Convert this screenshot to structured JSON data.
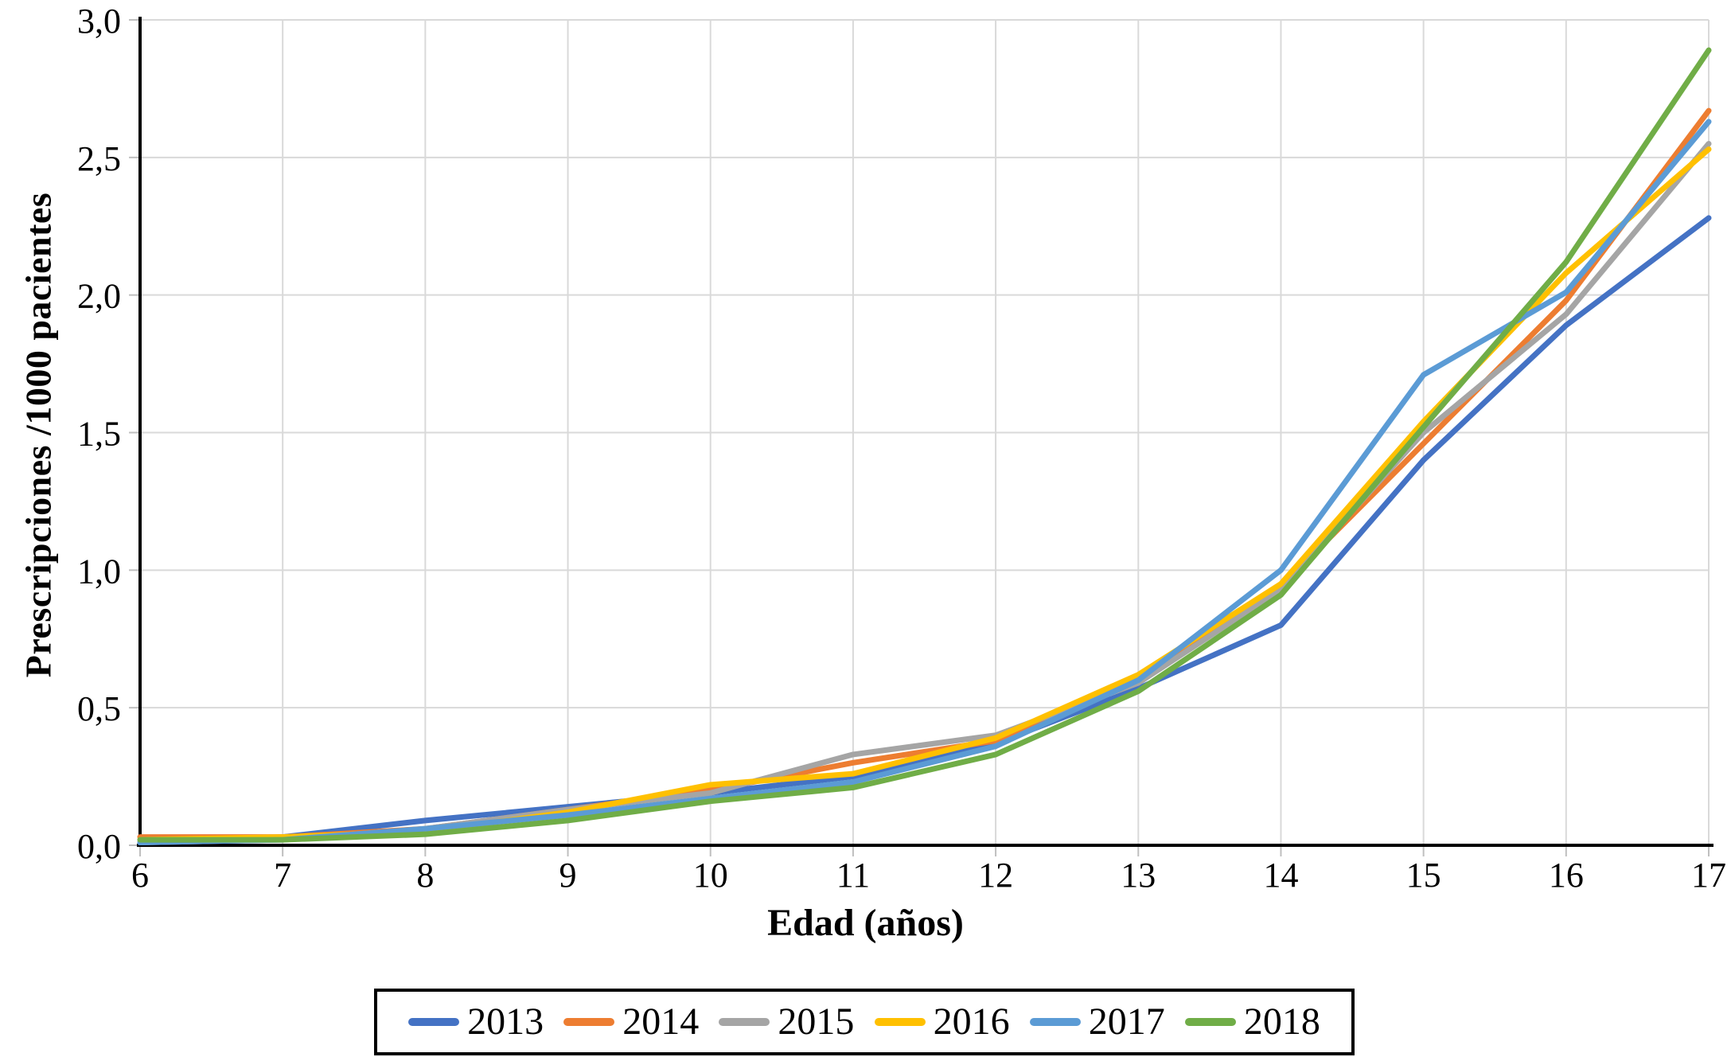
{
  "chart_data": {
    "type": "line",
    "title": "",
    "xlabel": "Edad (años)",
    "ylabel": "Prescripciones /1000 pacientes",
    "x": [
      6,
      7,
      8,
      9,
      10,
      11,
      12,
      13,
      14,
      15,
      16,
      17
    ],
    "x_tick_labels": [
      "6",
      "7",
      "8",
      "9",
      "10",
      "11",
      "12",
      "13",
      "14",
      "15",
      "16",
      "17"
    ],
    "y_ticks": [
      0.0,
      0.5,
      1.0,
      1.5,
      2.0,
      2.5,
      3.0
    ],
    "y_tick_labels": [
      "0,0",
      "0,5",
      "1,0",
      "1,5",
      "2,0",
      "2,5",
      "3,0"
    ],
    "xlim": [
      6,
      17
    ],
    "ylim": [
      0,
      3
    ],
    "grid": true,
    "legend_position": "bottom",
    "series": [
      {
        "name": "2013",
        "color": "#4472C4",
        "values": [
          0.01,
          0.03,
          0.09,
          0.14,
          0.19,
          0.25,
          0.37,
          0.57,
          0.8,
          1.4,
          1.89,
          2.28
        ]
      },
      {
        "name": "2014",
        "color": "#ED7D31",
        "values": [
          0.03,
          0.03,
          0.06,
          0.13,
          0.2,
          0.3,
          0.38,
          0.61,
          0.94,
          1.46,
          1.98,
          2.67
        ]
      },
      {
        "name": "2015",
        "color": "#A5A5A5",
        "values": [
          0.01,
          0.02,
          0.06,
          0.13,
          0.19,
          0.33,
          0.4,
          0.59,
          0.93,
          1.5,
          1.93,
          2.55
        ]
      },
      {
        "name": "2016",
        "color": "#FFC000",
        "values": [
          0.02,
          0.03,
          0.05,
          0.12,
          0.22,
          0.26,
          0.39,
          0.62,
          0.95,
          1.54,
          2.08,
          2.53
        ]
      },
      {
        "name": "2017",
        "color": "#5B9BD5",
        "values": [
          0.01,
          0.02,
          0.06,
          0.11,
          0.17,
          0.23,
          0.36,
          0.6,
          1.0,
          1.71,
          2.01,
          2.63
        ]
      },
      {
        "name": "2018",
        "color": "#70AD47",
        "values": [
          0.02,
          0.02,
          0.04,
          0.09,
          0.16,
          0.21,
          0.33,
          0.56,
          0.91,
          1.52,
          2.12,
          2.89
        ]
      }
    ],
    "colors": {
      "grid": "#D9D9D9",
      "axis": "#000000",
      "tick": "#BFBFBF",
      "text": "#000000",
      "background": "#FFFFFF"
    }
  }
}
